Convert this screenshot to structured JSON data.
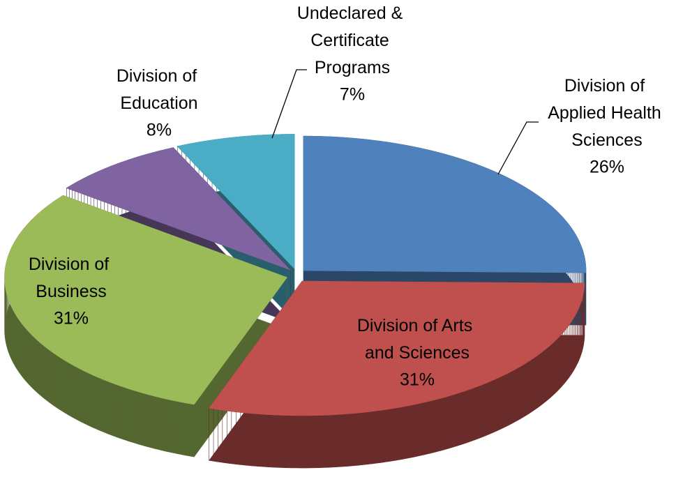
{
  "chart_data": {
    "type": "pie3d",
    "categories": [
      "Division of Applied Health Sciences",
      "Division of Arts and Sciences",
      "Division of Business",
      "Division of Education",
      "Undeclared & Certificate Programs"
    ],
    "values": [
      26,
      31,
      31,
      8,
      7
    ],
    "value_labels": [
      "26%",
      "31%",
      "31%",
      "8%",
      "7%"
    ],
    "colors": [
      "#4f81bd",
      "#c0504d",
      "#9bbb59",
      "#8064a2",
      "#4bacc6"
    ]
  }
}
